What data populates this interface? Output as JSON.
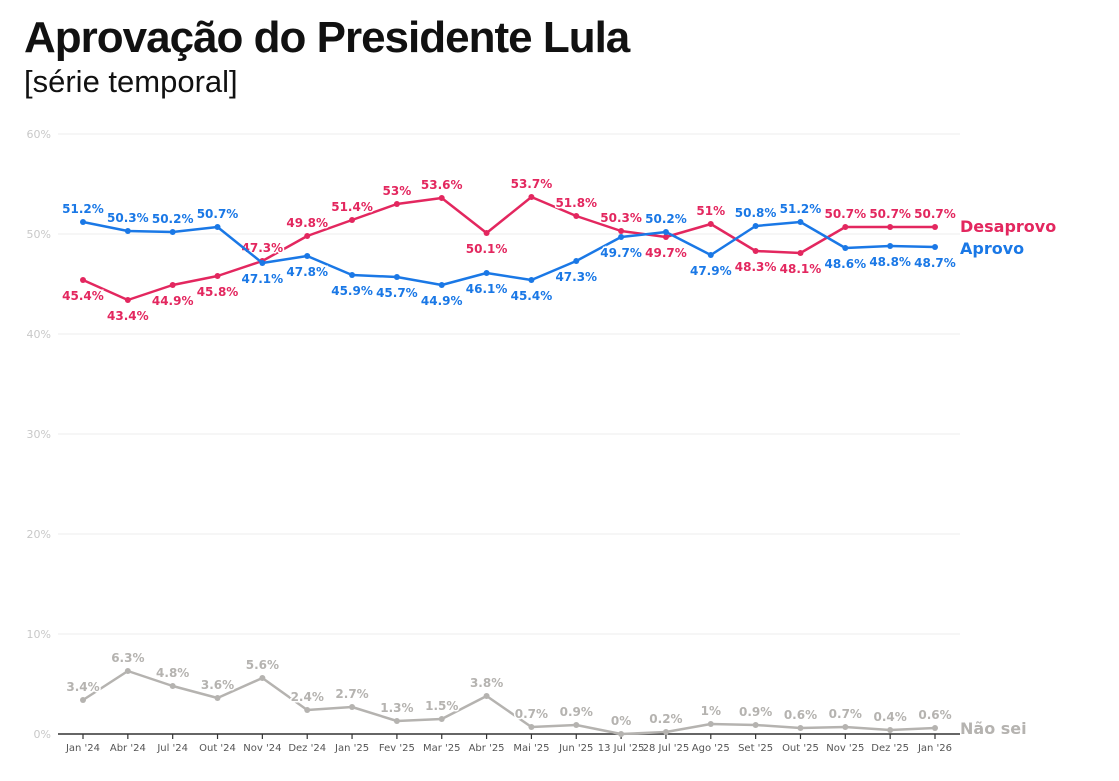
{
  "header": {
    "title": "Aprovação do Presidente Lula",
    "subtitle": "[série temporal]"
  },
  "chart_data": {
    "type": "line",
    "title": "Aprovação do Presidente Lula",
    "subtitle": "[série temporal]",
    "xlabel": "",
    "ylabel": "",
    "ylim": [
      0,
      60
    ],
    "yticks": [
      "0%",
      "10%",
      "20%",
      "30%",
      "40%",
      "50%",
      "60%"
    ],
    "grid": true,
    "legend": "inline-right",
    "categories": [
      "Jan '24",
      "Abr '24",
      "Jul '24",
      "Out '24",
      "Nov '24",
      "Dez '24",
      "Jan '25",
      "Fev '25",
      "Mar '25",
      "Abr '25",
      "Mai '25",
      "Jun '25",
      "13 Jul '25",
      "28 Jul '25",
      "Ago '25",
      "Set '25",
      "Out '25",
      "Nov '25",
      "Dez '25",
      "Jan '26"
    ],
    "series": [
      {
        "name": "Desaprovo",
        "color": "#e3275f",
        "values": [
          45.4,
          43.4,
          44.9,
          45.8,
          47.3,
          49.8,
          51.4,
          53.0,
          53.6,
          50.1,
          53.7,
          51.8,
          50.3,
          49.7,
          51.0,
          48.3,
          48.1,
          50.7,
          50.7,
          50.7
        ],
        "labels": [
          "45.4%",
          "43.4%",
          "44.9%",
          "45.8%",
          "47.3%",
          "49.8%",
          "51.4%",
          "53%",
          "53.6%",
          "50.1%",
          "53.7%",
          "51.8%",
          "50.3%",
          "49.7%",
          "51%",
          "48.3%",
          "48.1%",
          "50.7%",
          "50.7%",
          "50.7%"
        ],
        "label_pos": [
          "below",
          "below",
          "below",
          "below",
          "above",
          "above",
          "above",
          "above",
          "above",
          "below",
          "above",
          "above",
          "above",
          "below",
          "above",
          "below",
          "below",
          "above",
          "above",
          "above"
        ]
      },
      {
        "name": "Aprovo",
        "color": "#1a78e6",
        "values": [
          51.2,
          50.3,
          50.2,
          50.7,
          47.1,
          47.8,
          45.9,
          45.7,
          44.9,
          46.1,
          45.4,
          47.3,
          49.7,
          50.2,
          47.9,
          50.8,
          51.2,
          48.6,
          48.8,
          48.7
        ],
        "labels": [
          "51.2%",
          "50.3%",
          "50.2%",
          "50.7%",
          "47.1%",
          "47.8%",
          "45.9%",
          "45.7%",
          "44.9%",
          "46.1%",
          "45.4%",
          "47.3%",
          "49.7%",
          "50.2%",
          "47.9%",
          "50.8%",
          "51.2%",
          "48.6%",
          "48.8%",
          "48.7%"
        ],
        "label_pos": [
          "above",
          "above",
          "above",
          "above",
          "below",
          "below",
          "below",
          "below",
          "below",
          "below",
          "below",
          "below",
          "below",
          "above",
          "below",
          "above",
          "above",
          "below",
          "below",
          "below"
        ]
      },
      {
        "name": "Não sei",
        "color": "#b5b3b0",
        "values": [
          3.4,
          6.3,
          4.8,
          3.6,
          5.6,
          2.4,
          2.7,
          1.3,
          1.5,
          3.8,
          0.7,
          0.9,
          0.0,
          0.2,
          1.0,
          0.9,
          0.6,
          0.7,
          0.4,
          0.6
        ],
        "labels": [
          "3.4%",
          "6.3%",
          "4.8%",
          "3.6%",
          "5.6%",
          "2.4%",
          "2.7%",
          "1.3%",
          "1.5%",
          "3.8%",
          "0.7%",
          "0.9%",
          "0%",
          "0.2%",
          "1%",
          "0.9%",
          "0.6%",
          "0.7%",
          "0.4%",
          "0.6%"
        ],
        "label_pos": [
          "above",
          "above",
          "above",
          "above",
          "above",
          "above",
          "above",
          "above",
          "above",
          "above",
          "above",
          "above",
          "above",
          "above",
          "above",
          "above",
          "above",
          "above",
          "above",
          "above"
        ]
      }
    ],
    "colors": {
      "grid": "#ececec",
      "axis": "#333333",
      "ytick_text": "#c8c8c8",
      "xtick_text": "#555555"
    }
  }
}
